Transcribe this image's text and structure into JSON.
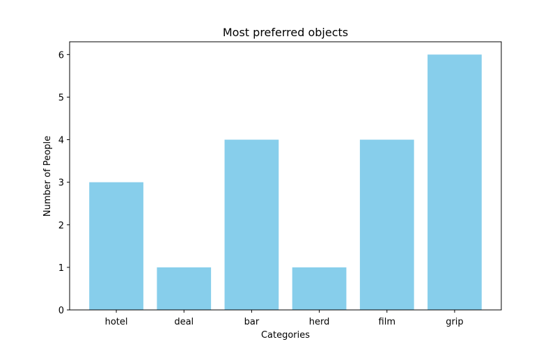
{
  "chart_data": {
    "type": "bar",
    "title": "Most preferred objects",
    "xlabel": "Categories",
    "ylabel": "Number of People",
    "categories": [
      "hotel",
      "deal",
      "bar",
      "herd",
      "film",
      "grip"
    ],
    "values": [
      3,
      1,
      4,
      1,
      4,
      6
    ],
    "ylim": [
      0,
      6.3
    ],
    "yticks": [
      0,
      1,
      2,
      3,
      4,
      5,
      6
    ],
    "bar_color": "#87ceeb",
    "grid": false,
    "legend": "none"
  }
}
